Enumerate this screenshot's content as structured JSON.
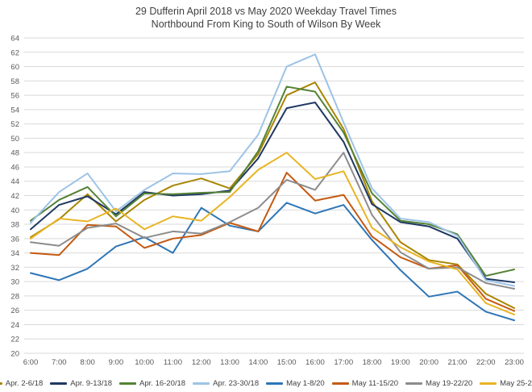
{
  "title": {
    "line1": "29 Dufferin April 2018 vs May 2020 Weekday Travel Times",
    "line2": "Northbound From King to South of Wilson By Week"
  },
  "chart_data": {
    "type": "line",
    "x": [
      "6:00",
      "7:00",
      "8:00",
      "9:00",
      "10:00",
      "11:00",
      "12:00",
      "13:00",
      "14:00",
      "15:00",
      "16:00",
      "17:00",
      "18:00",
      "19:00",
      "20:00",
      "21:00",
      "22:00",
      "23:00"
    ],
    "ylim": [
      20,
      64
    ],
    "ytick_step": 2,
    "grid": "horizontal-only",
    "legend_position": "bottom",
    "axis_color": "#595959",
    "gridline_color": "#d9d9d9",
    "series": [
      {
        "name": "Apr. 2-6/18",
        "color": "#A98600",
        "values": [
          36.2,
          38.7,
          42.2,
          38.4,
          41.4,
          43.4,
          44.4,
          43.0,
          47.8,
          56.0,
          57.8,
          51.3,
          41.2,
          35.5,
          33.0,
          32.4,
          28.3,
          26.3
        ]
      },
      {
        "name": "Apr. 9-13/18",
        "color": "#1F3864",
        "values": [
          37.3,
          40.7,
          41.9,
          39.4,
          42.5,
          42.0,
          42.2,
          42.7,
          47.2,
          54.2,
          55.0,
          49.5,
          40.8,
          38.3,
          37.7,
          36.0,
          30.4,
          29.9
        ]
      },
      {
        "name": "Apr. 16-20/18",
        "color": "#548235",
        "values": [
          38.5,
          41.4,
          43.2,
          39.1,
          42.3,
          42.2,
          42.4,
          42.5,
          48.2,
          57.2,
          56.5,
          50.8,
          42.3,
          38.5,
          38.0,
          36.6,
          30.8,
          31.7
        ]
      },
      {
        "name": "Apr. 23-30/18",
        "color": "#9DC3E6",
        "values": [
          38.2,
          42.5,
          45.1,
          39.8,
          42.8,
          45.1,
          45.0,
          45.4,
          50.5,
          60.0,
          61.7,
          52.2,
          43.0,
          38.8,
          38.3,
          36.4,
          30.2,
          29.4
        ]
      },
      {
        "name": "May 1-8/20",
        "color": "#2E75B6",
        "values": [
          31.2,
          30.2,
          31.8,
          34.9,
          36.2,
          34.0,
          40.3,
          37.8,
          37.0,
          41.0,
          39.5,
          40.7,
          35.8,
          31.6,
          27.9,
          28.6,
          25.8,
          24.6
        ]
      },
      {
        "name": "May 11-15/20",
        "color": "#C55A11",
        "values": [
          34.0,
          33.7,
          37.9,
          37.7,
          34.7,
          36.0,
          36.5,
          38.2,
          37.0,
          45.2,
          41.3,
          42.1,
          36.3,
          33.4,
          31.8,
          32.3,
          27.6,
          25.9
        ]
      },
      {
        "name": "May 19-22/20",
        "color": "#8C8C8C",
        "values": [
          35.5,
          35.0,
          37.5,
          38.1,
          36.1,
          37.0,
          36.7,
          38.3,
          40.3,
          44.2,
          42.8,
          48.0,
          39.3,
          34.1,
          31.8,
          32.0,
          29.8,
          29.0
        ]
      },
      {
        "name": "May 25-29/20",
        "color": "#E8B424",
        "values": [
          36.0,
          38.8,
          38.4,
          40.2,
          37.3,
          39.1,
          38.5,
          41.8,
          45.6,
          48.0,
          44.3,
          45.4,
          37.5,
          34.8,
          32.8,
          31.7,
          27.0,
          25.4
        ]
      }
    ]
  }
}
